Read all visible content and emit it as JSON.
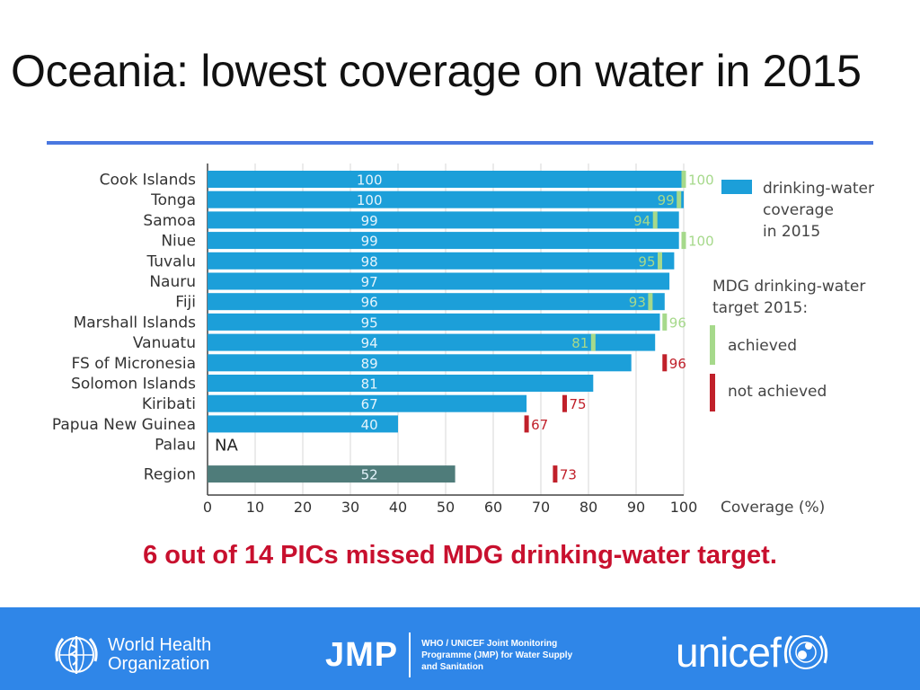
{
  "title": "Oceania: lowest coverage on water in 2015",
  "caption": "6 out of 14 PICs missed MDG drinking-water target.",
  "colors": {
    "bar": "#1c9fd9",
    "region_bar": "#4f7c7a",
    "achieved": "#a6d98b",
    "not_achieved": "#c0202a",
    "rule": "#4a78e0",
    "footer": "#2f86e8"
  },
  "chart_data": {
    "type": "bar",
    "orientation": "horizontal",
    "xlabel": "Coverage (%)",
    "xlim": [
      0,
      100
    ],
    "xticks": [
      0,
      10,
      20,
      30,
      40,
      50,
      60,
      70,
      80,
      90,
      100
    ],
    "grid": true,
    "categories": [
      "Cook Islands",
      "Tonga",
      "Samoa",
      "Niue",
      "Tuvalu",
      "Nauru",
      "Fiji",
      "Marshall Islands",
      "Vanuatu",
      "FS of Micronesia",
      "Solomon Islands",
      "Kiribati",
      "Papua New Guinea",
      "Palau",
      "Region"
    ],
    "coverage": [
      100,
      100,
      99,
      99,
      98,
      97,
      96,
      95,
      94,
      89,
      81,
      67,
      40,
      null,
      52
    ],
    "coverage_labels": [
      "100",
      "100",
      "99",
      "99",
      "98",
      "97",
      "96",
      "95",
      "94",
      "89",
      "81",
      "67",
      "40",
      "NA",
      "52"
    ],
    "targets": [
      {
        "value": 100,
        "label": "100",
        "status": "achieved"
      },
      {
        "value": 99,
        "label": "99",
        "status": "achieved"
      },
      {
        "value": 94,
        "label": "94",
        "status": "achieved"
      },
      {
        "value": 100,
        "label": "100",
        "status": "achieved"
      },
      {
        "value": 95,
        "label": "95",
        "status": "achieved"
      },
      null,
      {
        "value": 93,
        "label": "93",
        "status": "achieved"
      },
      {
        "value": 96,
        "label": "96",
        "status": "achieved"
      },
      {
        "value": 81,
        "label": "81",
        "status": "achieved"
      },
      {
        "value": 96,
        "label": "96",
        "status": "not_achieved"
      },
      null,
      {
        "value": 75,
        "label": "75",
        "status": "not_achieved"
      },
      {
        "value": 67,
        "label": "67",
        "status": "not_achieved"
      },
      null,
      {
        "value": 73,
        "label": "73",
        "status": "not_achieved"
      }
    ],
    "legend": {
      "placement": "right",
      "coverage_line1": "drinking-water",
      "coverage_line2": "coverage",
      "coverage_line3": "in 2015",
      "target_title_line1": "MDG drinking-water",
      "target_title_line2": "target 2015:",
      "achieved": "achieved",
      "not_achieved": "not achieved"
    }
  },
  "footer": {
    "who_line1": "World Health",
    "who_line2": "Organization",
    "jmp_mark": "JMP",
    "jmp_line1": "WHO / UNICEF Joint Monitoring",
    "jmp_line2": "Programme (JMP) for Water Supply",
    "jmp_line3": "and Sanitation",
    "unicef": "unicef"
  }
}
